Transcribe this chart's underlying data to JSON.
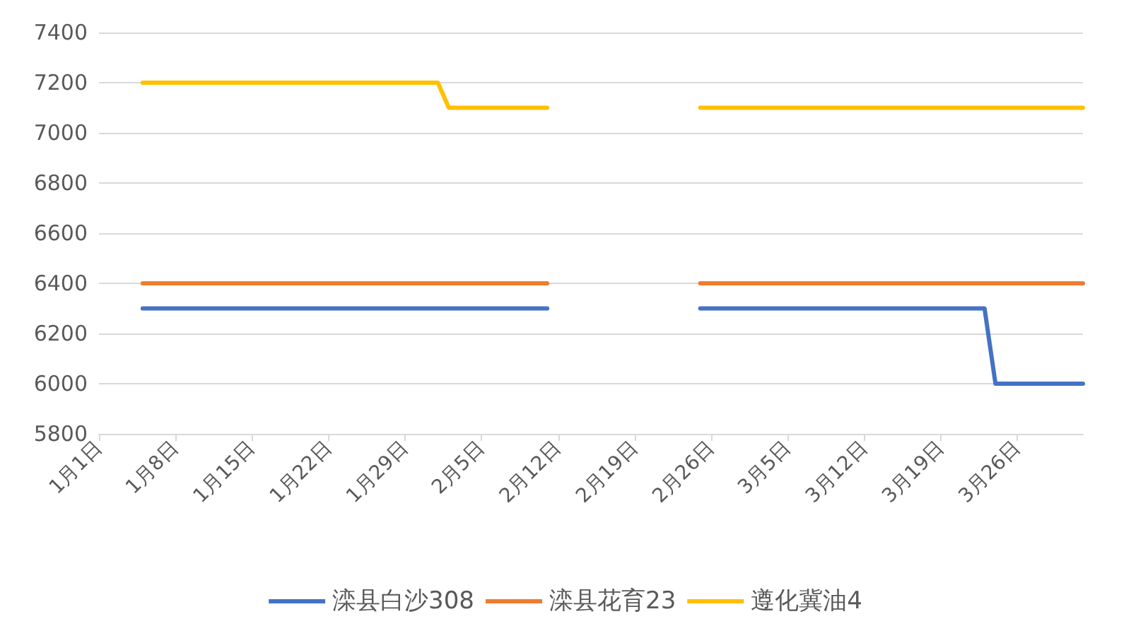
{
  "chart_data": {
    "type": "line",
    "x": [
      "--01-05",
      "--02-01",
      "--02-02",
      "--02-11",
      "--02-18",
      "--02-25",
      "--03-23",
      "--03-24",
      "--04-01"
    ],
    "series": [
      {
        "name": "滦县白沙308",
        "color": "#4472c4",
        "values": [
          6300,
          6300,
          6300,
          6300,
          null,
          6300,
          6300,
          6000,
          6000
        ]
      },
      {
        "name": "滦县花育23",
        "color": "#ed7d31",
        "values": [
          6400,
          6400,
          6400,
          6400,
          null,
          6400,
          6400,
          6400,
          6400
        ]
      },
      {
        "name": "遵化冀油4",
        "color": "#ffc000",
        "values": [
          7200,
          7200,
          7100,
          7100,
          null,
          7100,
          7100,
          7100,
          7100
        ]
      }
    ],
    "xlim": [
      "--01-01",
      "--04-01"
    ],
    "xticks": [
      {
        "value": "--01-01",
        "label": "1月1日"
      },
      {
        "value": "--01-08",
        "label": "1月8日"
      },
      {
        "value": "--01-15",
        "label": "1月15日"
      },
      {
        "value": "--01-22",
        "label": "1月22日"
      },
      {
        "value": "--01-29",
        "label": "1月29日"
      },
      {
        "value": "--02-05",
        "label": "2月5日"
      },
      {
        "value": "--02-12",
        "label": "2月12日"
      },
      {
        "value": "--02-19",
        "label": "2月19日"
      },
      {
        "value": "--02-26",
        "label": "2月26日"
      },
      {
        "value": "--03-05",
        "label": "3月5日"
      },
      {
        "value": "--03-12",
        "label": "3月12日"
      },
      {
        "value": "--03-19",
        "label": "3月19日"
      },
      {
        "value": "--03-26",
        "label": "3月26日"
      }
    ],
    "ylim": [
      5800,
      7400
    ],
    "yticks": [
      5800,
      6000,
      6200,
      6400,
      6600,
      6800,
      7000,
      7200,
      7400
    ],
    "grid": "y",
    "legend": "bottom",
    "marker": "none",
    "line_style": "solid"
  }
}
